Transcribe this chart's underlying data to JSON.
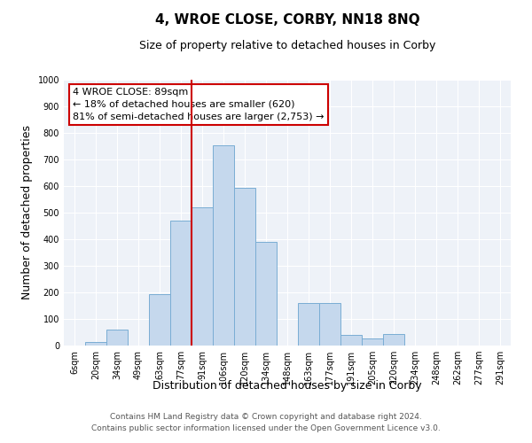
{
  "title": "4, WROE CLOSE, CORBY, NN18 8NQ",
  "subtitle": "Size of property relative to detached houses in Corby",
  "xlabel": "Distribution of detached houses by size in Corby",
  "ylabel": "Number of detached properties",
  "categories": [
    "6sqm",
    "20sqm",
    "34sqm",
    "49sqm",
    "63sqm",
    "77sqm",
    "91sqm",
    "106sqm",
    "120sqm",
    "134sqm",
    "148sqm",
    "163sqm",
    "177sqm",
    "191sqm",
    "205sqm",
    "220sqm",
    "234sqm",
    "248sqm",
    "262sqm",
    "277sqm",
    "291sqm"
  ],
  "values": [
    0,
    13,
    60,
    0,
    195,
    470,
    520,
    755,
    595,
    390,
    0,
    160,
    160,
    40,
    27,
    45,
    0,
    0,
    0,
    0,
    0
  ],
  "bar_color": "#c5d8ed",
  "bar_edge_color": "#7aadd4",
  "vline_x_index": 6,
  "vline_color": "#cc0000",
  "annotation_line1": "4 WROE CLOSE: 89sqm",
  "annotation_line2": "← 18% of detached houses are smaller (620)",
  "annotation_line3": "81% of semi-detached houses are larger (2,753) →",
  "annotation_box_color": "#ffffff",
  "annotation_box_edge_color": "#cc0000",
  "ylim": [
    0,
    1000
  ],
  "yticks": [
    0,
    100,
    200,
    300,
    400,
    500,
    600,
    700,
    800,
    900,
    1000
  ],
  "bg_color": "#eef2f8",
  "footer_line1": "Contains HM Land Registry data © Crown copyright and database right 2024.",
  "footer_line2": "Contains public sector information licensed under the Open Government Licence v3.0.",
  "title_fontsize": 11,
  "subtitle_fontsize": 9,
  "axis_label_fontsize": 9,
  "tick_fontsize": 7,
  "footer_fontsize": 6.5,
  "annotation_fontsize": 8
}
